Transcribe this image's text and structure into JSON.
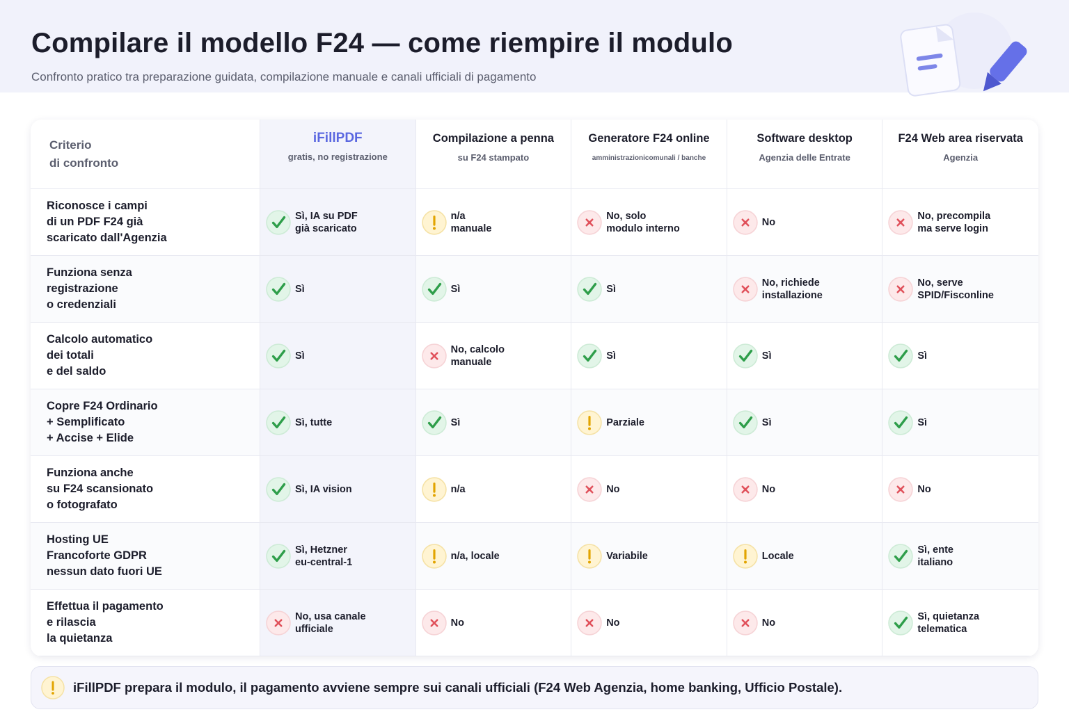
{
  "header": {
    "title": "Compilare il modello F24 — come riempire il modulo",
    "subtitle": "Confronto pratico tra preparazione guidata, compilazione manuale e canali ufficiali di pagamento"
  },
  "table": {
    "corner": "Criterio\ndi confronto",
    "columns": [
      {
        "name": "iFillPDF",
        "sub": "gratis, no registrazione",
        "highlight": true
      },
      {
        "name": "Compilazione a penna",
        "sub": "su F24 stampato"
      },
      {
        "name": "Generatore F24 online",
        "sub": "amministrazionicomunali / banche",
        "small": true
      },
      {
        "name": "Software desktop",
        "sub": "Agenzia delle Entrate"
      },
      {
        "name": "F24 Web area riservata",
        "sub": "Agenzia"
      }
    ],
    "rows": [
      {
        "criterion": "Riconosce i campi\ndi un PDF F24 già\nscaricato dall'Agenzia",
        "cells": [
          {
            "status": "yes",
            "text": "Sì, IA su PDF\ngià scaricato"
          },
          {
            "status": "partial",
            "text": "n/a\nmanuale"
          },
          {
            "status": "no",
            "text": "No, solo\nmodulo interno"
          },
          {
            "status": "no",
            "text": "No"
          },
          {
            "status": "no",
            "text": "No, precompila\nma serve login"
          }
        ]
      },
      {
        "criterion": "Funziona senza\nregistrazione\no credenziali",
        "cells": [
          {
            "status": "yes",
            "text": "Sì"
          },
          {
            "status": "yes",
            "text": "Sì"
          },
          {
            "status": "yes",
            "text": "Sì"
          },
          {
            "status": "no",
            "text": "No, richiede\ninstallazione"
          },
          {
            "status": "no",
            "text": "No, serve\nSPID/Fisconline"
          }
        ]
      },
      {
        "criterion": "Calcolo automatico\ndei totali\ne del saldo",
        "cells": [
          {
            "status": "yes",
            "text": "Sì"
          },
          {
            "status": "no",
            "text": "No, calcolo\nmanuale"
          },
          {
            "status": "yes",
            "text": "Sì"
          },
          {
            "status": "yes",
            "text": "Sì"
          },
          {
            "status": "yes",
            "text": "Sì"
          }
        ]
      },
      {
        "criterion": "Copre F24 Ordinario\n+ Semplificato\n+ Accise + Elide",
        "cells": [
          {
            "status": "yes",
            "text": "Sì, tutte"
          },
          {
            "status": "yes",
            "text": "Sì"
          },
          {
            "status": "partial",
            "text": "Parziale"
          },
          {
            "status": "yes",
            "text": "Sì"
          },
          {
            "status": "yes",
            "text": "Sì"
          }
        ]
      },
      {
        "criterion": "Funziona anche\nsu F24 scansionato\no fotografato",
        "cells": [
          {
            "status": "yes",
            "text": "Sì, IA vision"
          },
          {
            "status": "partial",
            "text": "n/a"
          },
          {
            "status": "no",
            "text": "No"
          },
          {
            "status": "no",
            "text": "No"
          },
          {
            "status": "no",
            "text": "No"
          }
        ]
      },
      {
        "criterion": "Hosting UE\nFrancoforte GDPR\nnessun dato fuori UE",
        "cells": [
          {
            "status": "yes",
            "text": "Sì, Hetzner\neu-central-1"
          },
          {
            "status": "partial",
            "text": "n/a, locale"
          },
          {
            "status": "partial",
            "text": "Variabile"
          },
          {
            "status": "partial",
            "text": "Locale"
          },
          {
            "status": "yes",
            "text": "Sì, ente\nitaliano"
          }
        ]
      },
      {
        "criterion": "Effettua il pagamento\ne rilascia\nla quietanza",
        "cells": [
          {
            "status": "no",
            "text": "No, usa canale\nufficiale"
          },
          {
            "status": "no",
            "text": "No"
          },
          {
            "status": "no",
            "text": "No"
          },
          {
            "status": "no",
            "text": "No"
          },
          {
            "status": "yes",
            "text": "Sì, quietanza\ntelematica"
          }
        ]
      }
    ]
  },
  "note": {
    "status": "partial",
    "text": "iFillPDF prepara il modulo, il pagamento avviene sempre sui canali ufficiali (F24 Web Agenzia, home banking, Ufficio Postale)."
  }
}
